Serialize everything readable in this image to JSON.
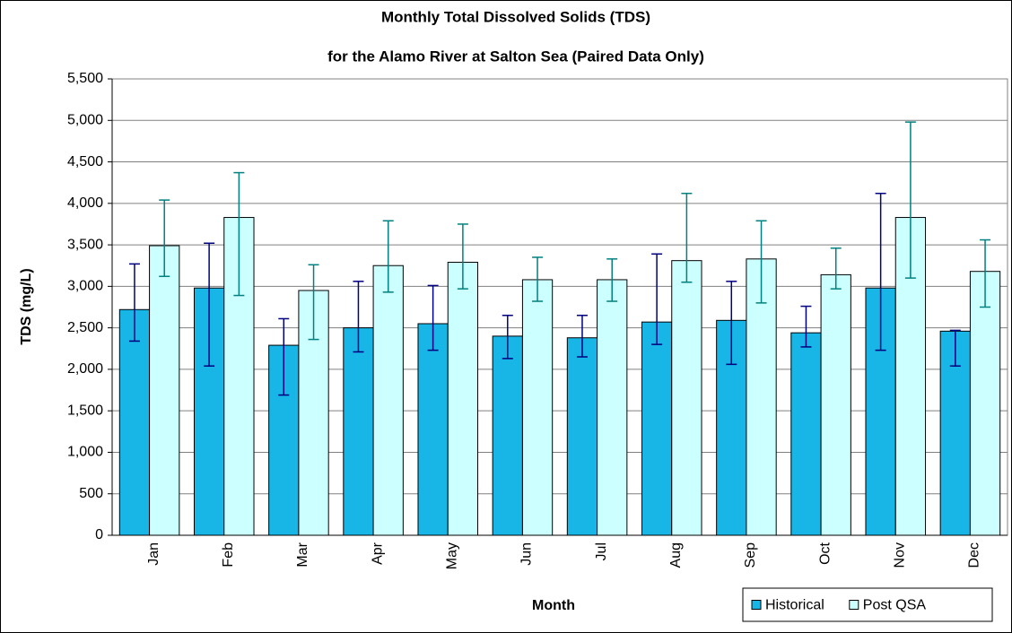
{
  "chart_data": {
    "type": "bar",
    "title": "Monthly Total Dissolved Solids (TDS)",
    "subtitle": "for the Alamo River at Salton Sea (Paired Data Only)",
    "x_label": "Month",
    "y_label": "TDS (mg/L)",
    "categories": [
      "Jan",
      "Feb",
      "Mar",
      "Apr",
      "May",
      "Jun",
      "Jul",
      "Aug",
      "Sep",
      "Oct",
      "Nov",
      "Dec"
    ],
    "series": [
      {
        "name": "Historical",
        "color": "#17b6e6",
        "error_color": "#000080",
        "values": [
          2720,
          2980,
          2290,
          2500,
          2550,
          2400,
          2380,
          2570,
          2590,
          2440,
          2980,
          2460
        ],
        "error_minus": [
          380,
          940,
          600,
          290,
          320,
          270,
          230,
          270,
          530,
          170,
          750,
          420
        ],
        "error_plus": [
          550,
          540,
          320,
          560,
          460,
          250,
          270,
          820,
          470,
          320,
          1140,
          10
        ]
      },
      {
        "name": "Post QSA",
        "color": "#ccffff",
        "error_color": "#008080",
        "values": [
          3490,
          3830,
          2950,
          3250,
          3290,
          3080,
          3080,
          3310,
          3330,
          3140,
          3830,
          3180
        ],
        "error_minus": [
          370,
          940,
          590,
          320,
          320,
          260,
          260,
          260,
          530,
          170,
          730,
          430
        ],
        "error_plus": [
          550,
          540,
          310,
          540,
          460,
          270,
          250,
          810,
          460,
          320,
          1150,
          380
        ]
      }
    ],
    "ylim": [
      0,
      5500
    ],
    "yticks": [
      0,
      500,
      {
        "value": 1000,
        "label": "1,000"
      },
      {
        "value": 1500,
        "label": "1,500"
      },
      {
        "value": 2000,
        "label": "2,000"
      },
      {
        "value": 2500,
        "label": "2,500"
      },
      {
        "value": 3000,
        "label": "3,000"
      },
      {
        "value": 3500,
        "label": "3,500"
      },
      {
        "value": 4000,
        "label": "4,000"
      },
      {
        "value": 4500,
        "label": "4,500"
      },
      {
        "value": 5000,
        "label": "5,000"
      },
      {
        "value": 5500,
        "label": "5,500"
      }
    ],
    "grid": true,
    "legend": "bottom-right"
  }
}
